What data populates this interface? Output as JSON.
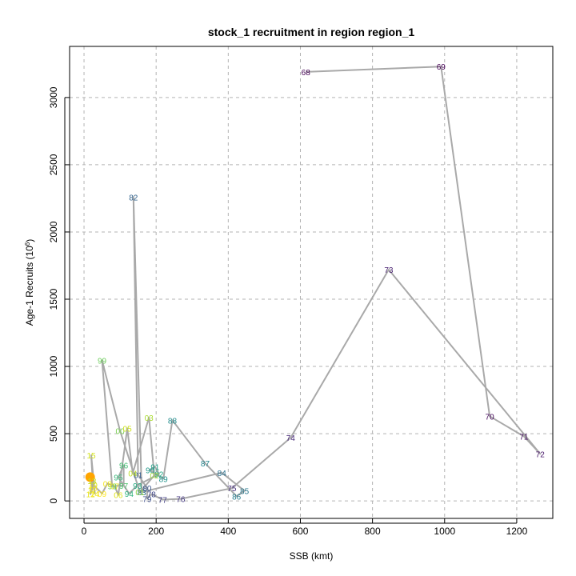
{
  "chart_data": {
    "type": "line",
    "title": "stock_1 recruitment in region region_1",
    "xlabel": "SSB (kmt)",
    "ylabel_main": "Age-1 Recruits (10",
    "ylabel_exp": "6",
    "ylabel_close": ")",
    "xlim": [
      -40,
      1300
    ],
    "ylim": [
      -130,
      3380
    ],
    "xticks": [
      0,
      200,
      400,
      600,
      800,
      1000,
      1200
    ],
    "yticks": [
      0,
      500,
      1000,
      1500,
      2000,
      2500,
      3000
    ],
    "grid": true,
    "line_color": "#a9a9a9",
    "highlight_color": "#ffa500",
    "highlight_point": {
      "x": 17,
      "y": 177
    },
    "points": [
      {
        "label": "68",
        "x": 615,
        "y": 3190,
        "color": "#440154"
      },
      {
        "label": "69",
        "x": 990,
        "y": 3230,
        "color": "#440154"
      },
      {
        "label": "70",
        "x": 1125,
        "y": 630,
        "color": "#46085c"
      },
      {
        "label": "71",
        "x": 1220,
        "y": 480,
        "color": "#471063"
      },
      {
        "label": "72",
        "x": 1265,
        "y": 350,
        "color": "#48186a"
      },
      {
        "label": "73",
        "x": 845,
        "y": 1720,
        "color": "#482071"
      },
      {
        "label": "74",
        "x": 573,
        "y": 470,
        "color": "#472777"
      },
      {
        "label": "75",
        "x": 410,
        "y": 95,
        "color": "#462f7c"
      },
      {
        "label": "76",
        "x": 268,
        "y": 15,
        "color": "#443781"
      },
      {
        "label": "77",
        "x": 218,
        "y": 10,
        "color": "#423e85"
      },
      {
        "label": "78",
        "x": 187,
        "y": 50,
        "color": "#3f4688"
      },
      {
        "label": "79",
        "x": 175,
        "y": 15,
        "color": "#3c4d8a"
      },
      {
        "label": "80",
        "x": 175,
        "y": 95,
        "color": "#39558c"
      },
      {
        "label": "81",
        "x": 150,
        "y": 195,
        "color": "#355c8d"
      },
      {
        "label": "82",
        "x": 137,
        "y": 2260,
        "color": "#32638d"
      },
      {
        "label": "83",
        "x": 160,
        "y": 65,
        "color": "#2f6a8d"
      },
      {
        "label": "84",
        "x": 382,
        "y": 210,
        "color": "#2c718e"
      },
      {
        "label": "85",
        "x": 445,
        "y": 75,
        "color": "#2a788e"
      },
      {
        "label": "86",
        "x": 423,
        "y": 35,
        "color": "#277e8e"
      },
      {
        "label": "87",
        "x": 336,
        "y": 280,
        "color": "#25858e"
      },
      {
        "label": "88",
        "x": 245,
        "y": 600,
        "color": "#228c8d"
      },
      {
        "label": "89",
        "x": 220,
        "y": 165,
        "color": "#20928c"
      },
      {
        "label": "90",
        "x": 183,
        "y": 230,
        "color": "#1f998a"
      },
      {
        "label": "91",
        "x": 197,
        "y": 255,
        "color": "#1fa088"
      },
      {
        "label": "92",
        "x": 208,
        "y": 200,
        "color": "#21a685"
      },
      {
        "label": "93",
        "x": 148,
        "y": 115,
        "color": "#26ad81"
      },
      {
        "label": "94",
        "x": 125,
        "y": 55,
        "color": "#2db27d"
      },
      {
        "label": "95",
        "x": 95,
        "y": 175,
        "color": "#37b878"
      },
      {
        "label": "96",
        "x": 110,
        "y": 265,
        "color": "#42be71"
      },
      {
        "label": "97",
        "x": 110,
        "y": 115,
        "color": "#4ec36b"
      },
      {
        "label": "98",
        "x": 78,
        "y": 110,
        "color": "#5bc863"
      },
      {
        "label": "99",
        "x": 50,
        "y": 1045,
        "color": "#6ccd5a"
      },
      {
        "label": "00",
        "x": 100,
        "y": 520,
        "color": "#7ad151"
      },
      {
        "label": "01",
        "x": 155,
        "y": 65,
        "color": "#8bd646"
      },
      {
        "label": "02",
        "x": 195,
        "y": 190,
        "color": "#9dd93b"
      },
      {
        "label": "03",
        "x": 180,
        "y": 620,
        "color": "#aadc32"
      },
      {
        "label": "04",
        "x": 135,
        "y": 205,
        "color": "#bddf26"
      },
      {
        "label": "05",
        "x": 120,
        "y": 540,
        "color": "#cde11d"
      },
      {
        "label": "06",
        "x": 95,
        "y": 45,
        "color": "#dfe318"
      },
      {
        "label": "07",
        "x": 85,
        "y": 110,
        "color": "#e7e419"
      },
      {
        "label": "08",
        "x": 65,
        "y": 130,
        "color": "#f2e51d"
      },
      {
        "label": "09",
        "x": 50,
        "y": 55,
        "color": "#fde725"
      },
      {
        "label": "10",
        "x": 25,
        "y": 120,
        "color": "#d8e219"
      },
      {
        "label": "11",
        "x": 22,
        "y": 80,
        "color": "#e0e318"
      },
      {
        "label": "12",
        "x": 18,
        "y": 50,
        "color": "#eae51a"
      },
      {
        "label": "13",
        "x": 22,
        "y": 150,
        "color": "#c8e020"
      },
      {
        "label": "14",
        "x": 30,
        "y": 55,
        "color": "#f2e51d"
      },
      {
        "label": "15",
        "x": 20,
        "y": 340,
        "color": "#d2e21b"
      },
      {
        "label": "16",
        "x": 25,
        "y": 100,
        "color": "#fde725"
      }
    ]
  }
}
